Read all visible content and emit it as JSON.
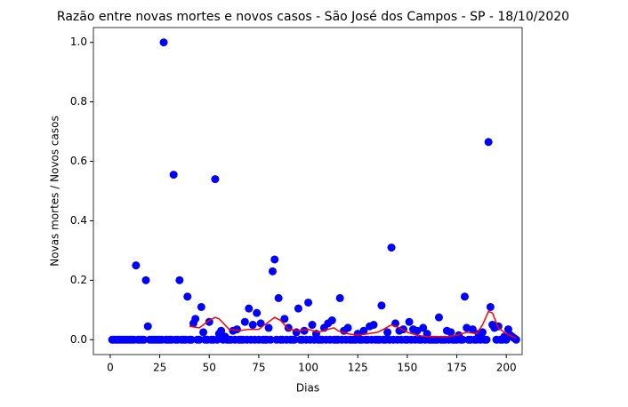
{
  "chart_data": {
    "type": "scatter",
    "title": "Razão entre novas mortes e novos casos - São José dos Campos - SP - 18/10/2020",
    "x_label": "Dias",
    "y_label": "Novas mortes / Novos casos",
    "color": "#0000ff",
    "x": [
      1,
      2,
      3,
      4,
      5,
      6,
      7,
      8,
      9,
      10,
      11,
      12,
      13,
      14,
      15,
      16,
      17,
      18,
      19,
      20,
      21,
      22,
      23,
      24,
      25,
      26,
      27,
      28,
      29,
      30,
      31,
      32,
      33,
      34,
      35,
      36,
      37,
      38,
      39,
      40,
      41,
      42,
      43,
      44,
      45,
      46,
      47,
      48,
      49,
      50,
      51,
      52,
      53,
      54,
      55,
      56,
      57,
      58,
      59,
      60,
      61,
      62,
      63,
      64,
      65,
      66,
      67,
      68,
      69,
      70,
      71,
      72,
      73,
      74,
      75,
      76,
      77,
      78,
      79,
      80,
      81,
      82,
      83,
      84,
      85,
      86,
      87,
      88,
      89,
      90,
      91,
      92,
      93,
      94,
      95,
      96,
      97,
      98,
      99,
      100,
      101,
      102,
      103,
      104,
      105,
      106,
      107,
      108,
      109,
      110,
      111,
      112,
      113,
      114,
      115,
      116,
      117,
      118,
      119,
      120,
      121,
      122,
      123,
      124,
      125,
      126,
      127,
      128,
      129,
      130,
      131,
      132,
      133,
      134,
      135,
      136,
      137,
      138,
      139,
      140,
      141,
      142,
      143,
      144,
      145,
      146,
      147,
      148,
      149,
      150,
      151,
      152,
      153,
      154,
      155,
      156,
      157,
      158,
      159,
      160,
      161,
      162,
      163,
      164,
      165,
      166,
      167,
      168,
      169,
      170,
      171,
      172,
      173,
      174,
      175,
      176,
      177,
      178,
      179,
      180,
      181,
      182,
      183,
      184,
      185,
      186,
      187,
      188,
      189,
      190,
      191,
      192,
      193,
      194,
      195,
      196,
      197,
      198,
      199,
      200,
      201,
      202,
      203,
      204,
      205
    ],
    "values": [
      0,
      0,
      0,
      0,
      0,
      0,
      0,
      0,
      0,
      0,
      0,
      0,
      0.25,
      0,
      0,
      0,
      0,
      0.2,
      0.045,
      0,
      0,
      0,
      0,
      0,
      0,
      0,
      1.0,
      0,
      0,
      0,
      0,
      0.555,
      0,
      0,
      0.2,
      0,
      0,
      0,
      0.145,
      0,
      0,
      0.055,
      0.07,
      0,
      0,
      0.11,
      0.025,
      0,
      0,
      0.06,
      0,
      0,
      0.54,
      0,
      0.02,
      0.03,
      0,
      0.01,
      0,
      0,
      0,
      0.03,
      0,
      0.035,
      0,
      0,
      0,
      0.06,
      0,
      0.105,
      0,
      0.05,
      0,
      0.09,
      0,
      0.055,
      0,
      0,
      0,
      0.04,
      0,
      0.23,
      0.27,
      0,
      0.14,
      0,
      0,
      0.07,
      0,
      0.04,
      0,
      0,
      0,
      0.025,
      0.105,
      0,
      0,
      0.03,
      0,
      0.125,
      0,
      0.05,
      0,
      0.02,
      0,
      0,
      0,
      0.04,
      0,
      0.055,
      0,
      0.065,
      0,
      0,
      0,
      0.14,
      0,
      0.03,
      0,
      0.04,
      0,
      0,
      0,
      0,
      0.02,
      0,
      0,
      0.03,
      0,
      0,
      0.045,
      0,
      0.05,
      0,
      0,
      0,
      0.115,
      0,
      0,
      0.025,
      0,
      0.31,
      0,
      0.055,
      0,
      0.03,
      0,
      0.035,
      0,
      0,
      0.06,
      0,
      0.035,
      0,
      0.03,
      0,
      0,
      0.04,
      0,
      0.02,
      0,
      0,
      0,
      0,
      0,
      0.075,
      0,
      0,
      0,
      0.03,
      0,
      0.025,
      0,
      0,
      0,
      0.015,
      0,
      0,
      0.145,
      0.04,
      0,
      0,
      0.035,
      0,
      0,
      0.02,
      0,
      0.025,
      0,
      0,
      0.665,
      0.11,
      0.05,
      0.04,
      0,
      0.045,
      0,
      0,
      0.01,
      0,
      0.035,
      0.015,
      0.01,
      0.005,
      0
    ],
    "overlay": {
      "type": "line",
      "color": "#ff0000",
      "x": [
        40,
        45,
        50,
        53,
        55,
        60,
        65,
        70,
        75,
        80,
        83,
        86,
        90,
        95,
        100,
        105,
        110,
        113,
        115,
        120,
        125,
        130,
        135,
        138,
        142,
        146,
        150,
        155,
        160,
        165,
        170,
        175,
        180,
        185,
        188,
        191,
        193,
        196,
        200,
        205
      ],
      "values": [
        0.045,
        0.04,
        0.065,
        0.075,
        0.07,
        0.035,
        0.03,
        0.035,
        0.035,
        0.06,
        0.075,
        0.065,
        0.035,
        0.03,
        0.035,
        0.025,
        0.035,
        0.04,
        0.03,
        0.02,
        0.015,
        0.02,
        0.025,
        0.035,
        0.05,
        0.04,
        0.025,
        0.015,
        0.01,
        0.01,
        0.01,
        0.015,
        0.025,
        0.02,
        0.05,
        0.095,
        0.09,
        0.04,
        0.02,
        0.005
      ]
    },
    "xlim": [
      -8.5,
      208
    ],
    "ylim": [
      -0.05,
      1.05
    ],
    "xticks": [
      0,
      25,
      50,
      75,
      100,
      125,
      150,
      175,
      200
    ],
    "yticks": [
      {
        "value": 0,
        "label": "0.0"
      },
      0.2,
      0.4,
      0.6,
      0.8,
      {
        "value": 1,
        "label": "1.0"
      }
    ]
  }
}
